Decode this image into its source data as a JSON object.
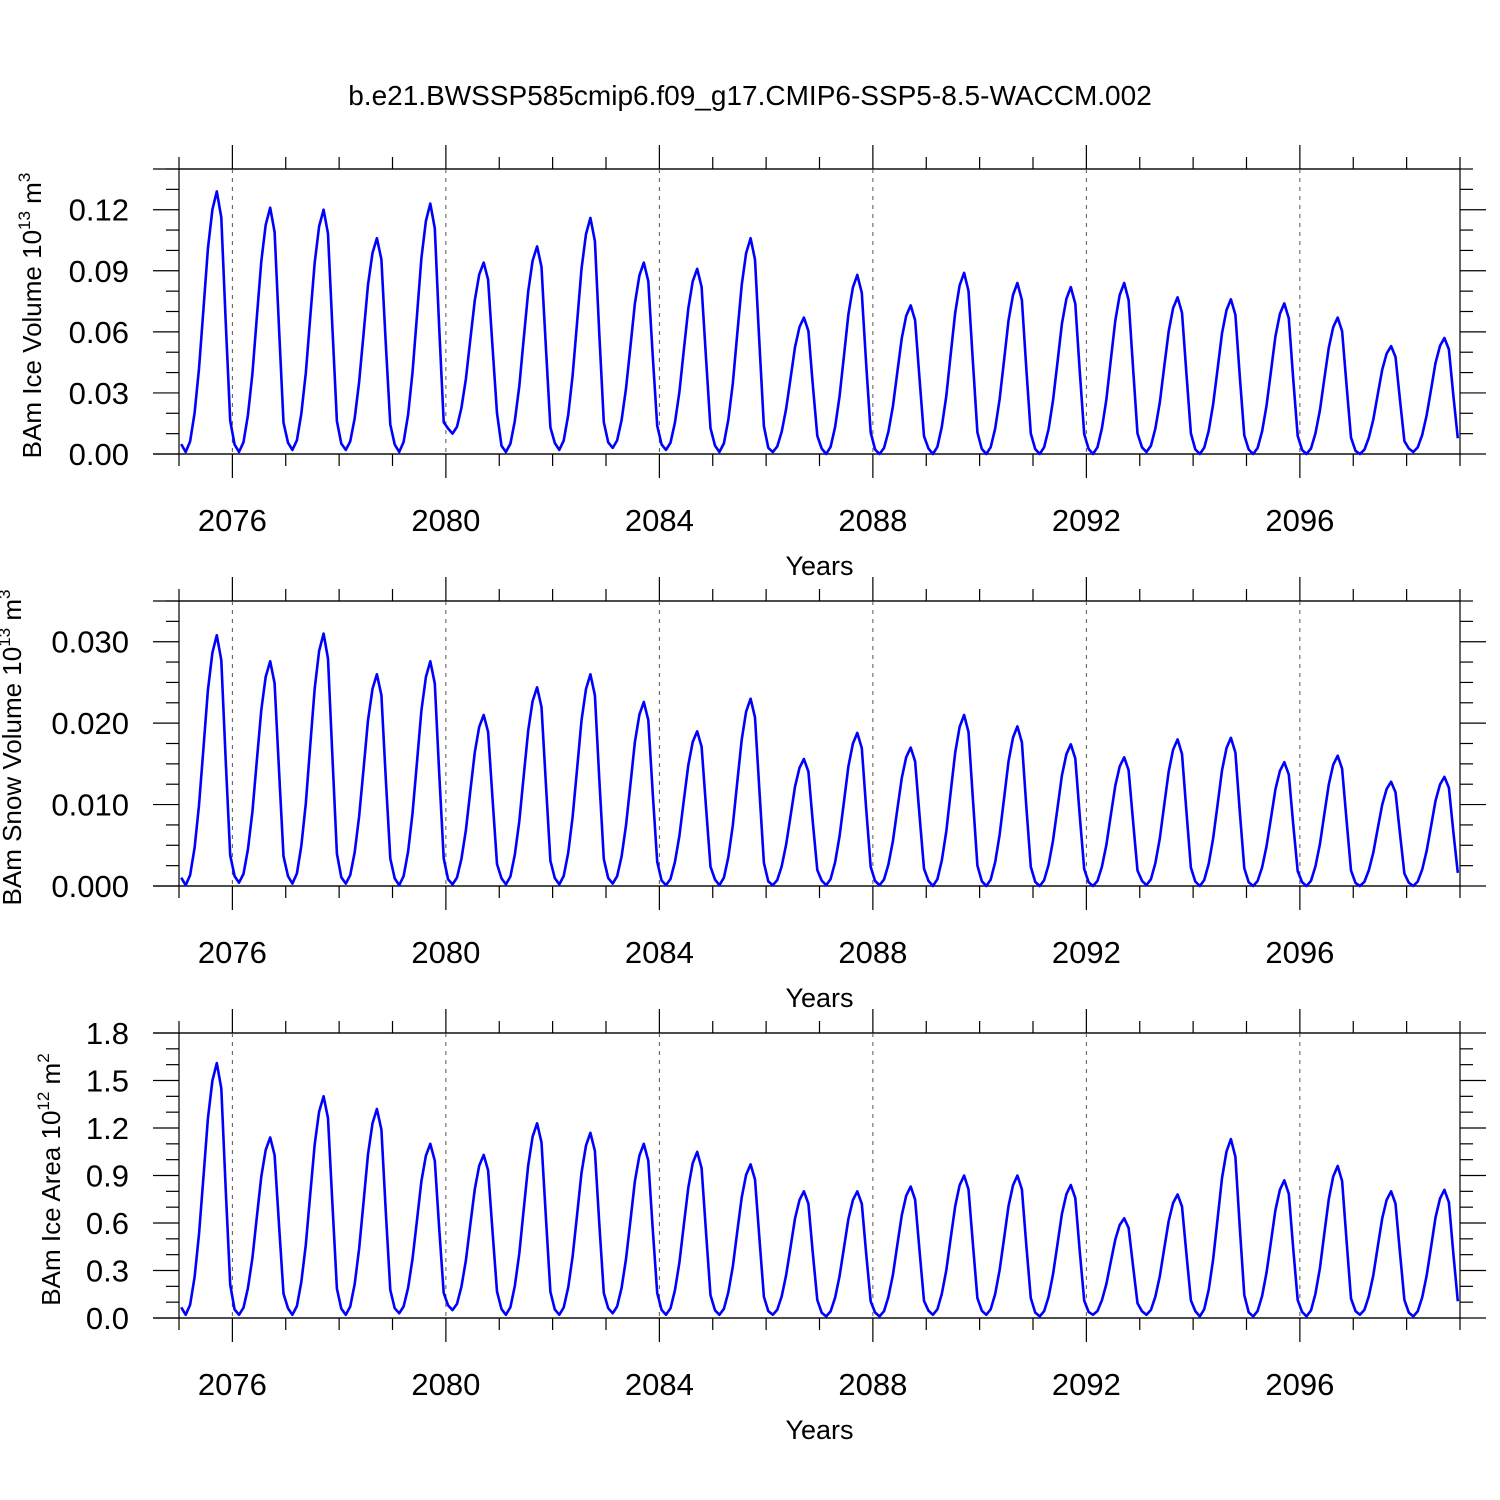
{
  "title": "b.e21.BWSSP585cmip6.f09_g17.CMIP6-SSP5-8.5-WACCM.002",
  "line_color": "#0000ff",
  "chart_data": [
    {
      "type": "line",
      "ylabel_main": "BAm Ice Volume 10",
      "ylabel_exp1": "13",
      "ylabel_unit": " m",
      "ylabel_exp2": "3",
      "xlabel": "Years",
      "xlim": [
        2075,
        2099
      ],
      "ylim": [
        0,
        0.14
      ],
      "yticks": [
        0,
        0.03,
        0.06,
        0.09,
        0.12
      ],
      "ytick_labels": [
        "0.00",
        "0.03",
        "0.06",
        "0.09",
        "0.12"
      ],
      "yminor": 0.01,
      "xticks": [
        2076,
        2080,
        2084,
        2088,
        2092,
        2096
      ],
      "xtick_labels": [
        "2076",
        "2080",
        "2084",
        "2088",
        "2092",
        "2096"
      ],
      "grid": "dashed vertical lines at x ticks",
      "peaks": [
        0.129,
        0.121,
        0.12,
        0.106,
        0.123,
        0.094,
        0.102,
        0.116,
        0.094,
        0.091,
        0.106,
        0.067,
        0.088,
        0.073,
        0.089,
        0.084,
        0.082,
        0.084,
        0.077,
        0.076,
        0.074,
        0.067,
        0.053,
        0.057
      ],
      "minima": [
        0.001,
        0.001,
        0.002,
        0.002,
        0.001,
        0.01,
        0.001,
        0.002,
        0.003,
        0.002,
        0.001,
        0.001,
        0.0,
        0.0,
        0.0,
        0.0,
        0.0,
        0.0,
        0.001,
        0.0,
        0.0,
        0.0,
        0.0,
        0.001
      ],
      "series": [
        {
          "values": []
        }
      ]
    },
    {
      "type": "line",
      "ylabel_main": "BAm Snow Volume 10",
      "ylabel_exp1": "13",
      "ylabel_unit": " m",
      "ylabel_exp2": "3",
      "xlabel": "Years",
      "xlim": [
        2075,
        2099
      ],
      "ylim": [
        0,
        0.035
      ],
      "yticks": [
        0,
        0.01,
        0.02,
        0.03
      ],
      "ytick_labels": [
        "0.000",
        "0.010",
        "0.020",
        "0.030"
      ],
      "yminor": 0.0025,
      "xticks": [
        2076,
        2080,
        2084,
        2088,
        2092,
        2096
      ],
      "xtick_labels": [
        "2076",
        "2080",
        "2084",
        "2088",
        "2092",
        "2096"
      ],
      "grid": "dashed vertical lines at x ticks",
      "peaks": [
        0.0308,
        0.0276,
        0.031,
        0.026,
        0.0276,
        0.021,
        0.0244,
        0.026,
        0.0226,
        0.019,
        0.023,
        0.0156,
        0.0188,
        0.017,
        0.021,
        0.0196,
        0.0174,
        0.0158,
        0.018,
        0.0182,
        0.0152,
        0.016,
        0.0128,
        0.0134
      ],
      "minima": [
        0.0001,
        0.0004,
        0.0003,
        0.0003,
        0.0001,
        0.0002,
        0.0002,
        0.0002,
        0.0003,
        0.0001,
        0.0001,
        0.0001,
        0.0001,
        0.0001,
        0.0,
        0.0,
        0.0,
        0.0,
        0.0001,
        0.0,
        0.0,
        0.0,
        0.0,
        0.0
      ],
      "series": [
        {
          "values": []
        }
      ]
    },
    {
      "type": "line",
      "ylabel_main": "BAm Ice Area 10",
      "ylabel_exp1": "12",
      "ylabel_unit": " m",
      "ylabel_exp2": "2",
      "xlabel": "Years",
      "xlim": [
        2075,
        2099
      ],
      "ylim": [
        0,
        1.8
      ],
      "yticks": [
        0,
        0.3,
        0.6,
        0.9,
        1.2,
        1.5,
        1.8
      ],
      "ytick_labels": [
        "0.0",
        "0.3",
        "0.6",
        "0.9",
        "1.2",
        "1.5",
        "1.8"
      ],
      "yminor": 0.1,
      "xticks": [
        2076,
        2080,
        2084,
        2088,
        2092,
        2096
      ],
      "xtick_labels": [
        "2076",
        "2080",
        "2084",
        "2088",
        "2092",
        "2096"
      ],
      "grid": "dashed vertical lines at x ticks",
      "peaks": [
        1.61,
        1.14,
        1.4,
        1.32,
        1.1,
        1.03,
        1.23,
        1.17,
        1.1,
        1.05,
        0.97,
        0.8,
        0.8,
        0.83,
        0.9,
        0.9,
        0.84,
        0.63,
        0.78,
        1.13,
        0.87,
        0.96,
        0.8,
        0.81
      ],
      "minima": [
        0.02,
        0.02,
        0.02,
        0.02,
        0.03,
        0.05,
        0.02,
        0.02,
        0.03,
        0.02,
        0.02,
        0.02,
        0.01,
        0.01,
        0.02,
        0.02,
        0.01,
        0.02,
        0.02,
        0.01,
        0.01,
        0.01,
        0.02,
        0.01
      ],
      "series": [
        {
          "values": []
        }
      ]
    }
  ]
}
